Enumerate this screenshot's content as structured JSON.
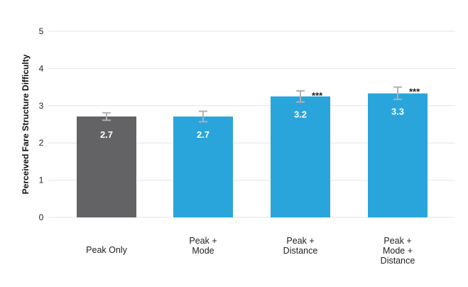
{
  "chart_data": {
    "type": "bar",
    "title": "",
    "xlabel": "",
    "ylabel": "Perceived Fare Structure Difficulty",
    "ylim": [
      0,
      5
    ],
    "yticks": [
      "0",
      "1",
      "2",
      "3",
      "4",
      "5"
    ],
    "grid": true,
    "categories": [
      [
        "Peak Only"
      ],
      [
        "Peak +",
        "Mode"
      ],
      [
        "Peak +",
        "Distance"
      ],
      [
        "Peak +",
        "Mode +",
        "Distance"
      ]
    ],
    "values": [
      2.71,
      2.71,
      3.25,
      3.33
    ],
    "data_labels": [
      "2.7",
      "2.7",
      "3.2",
      "3.3"
    ],
    "error_low": [
      2.61,
      2.57,
      3.1,
      3.17
    ],
    "error_high": [
      2.81,
      2.85,
      3.4,
      3.5
    ],
    "significance": [
      "",
      "",
      "***",
      "***"
    ],
    "colors": [
      "#636366",
      "#29a5dc",
      "#29a5dc",
      "#29a5dc"
    ],
    "grid_color": "#e4e4e4",
    "error_bar_color": "#b0b0b0"
  }
}
